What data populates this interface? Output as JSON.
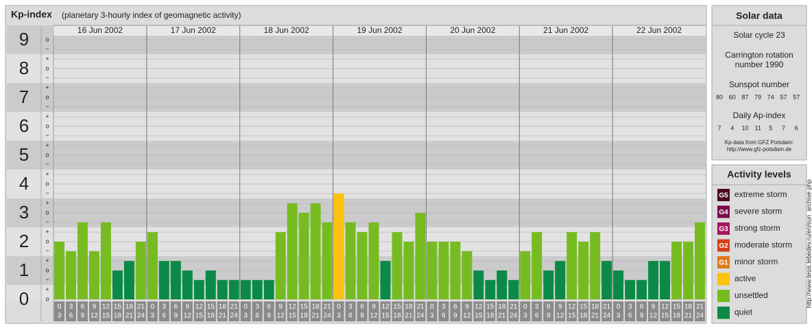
{
  "chart_data": {
    "type": "bar",
    "title": "Kp-index",
    "subtitle": "(planetary 3-hourly index of geomagnetic activity)",
    "categories": [
      "16 Jun 2002",
      "17 Jun 2002",
      "18 Jun 2002",
      "19 Jun 2002",
      "20 Jun 2002",
      "21 Jun 2002",
      "22 Jun 2002"
    ],
    "hour_labels": [
      [
        "0",
        "3"
      ],
      [
        "3",
        "6"
      ],
      [
        "6",
        "9"
      ],
      [
        "9",
        "12"
      ],
      [
        "12",
        "15"
      ],
      [
        "15",
        "18"
      ],
      [
        "18",
        "21"
      ],
      [
        "21",
        "24"
      ]
    ],
    "values": [
      [
        2,
        1.67,
        2.67,
        1.67,
        2.67,
        1,
        1.33,
        2
      ],
      [
        2.33,
        1.33,
        1.33,
        1,
        0.67,
        1,
        0.67,
        0.67
      ],
      [
        0.67,
        0.67,
        0.67,
        2.33,
        3.33,
        3,
        3.33,
        2.67
      ],
      [
        3.67,
        2.67,
        2.33,
        2.67,
        1.33,
        2.33,
        2,
        3
      ],
      [
        2,
        2,
        2,
        1.67,
        1,
        0.67,
        1,
        0.67
      ],
      [
        1.67,
        2.33,
        1,
        1.33,
        2.33,
        2,
        2.33,
        1.33
      ],
      [
        1,
        0.67,
        0.67,
        1.33,
        1.33,
        2,
        2,
        2.67
      ]
    ],
    "colors": [
      [
        "#76bc21",
        "#76bc21",
        "#76bc21",
        "#76bc21",
        "#76bc21",
        "#0a8a46",
        "#0a8a46",
        "#76bc21"
      ],
      [
        "#76bc21",
        "#0a8a46",
        "#0a8a46",
        "#0a8a46",
        "#0a8a46",
        "#0a8a46",
        "#0a8a46",
        "#0a8a46"
      ],
      [
        "#0a8a46",
        "#0a8a46",
        "#0a8a46",
        "#76bc21",
        "#76bc21",
        "#76bc21",
        "#76bc21",
        "#76bc21"
      ],
      [
        "#fcc20d",
        "#76bc21",
        "#76bc21",
        "#76bc21",
        "#0a8a46",
        "#76bc21",
        "#76bc21",
        "#76bc21"
      ],
      [
        "#76bc21",
        "#76bc21",
        "#76bc21",
        "#76bc21",
        "#0a8a46",
        "#0a8a46",
        "#0a8a46",
        "#0a8a46"
      ],
      [
        "#76bc21",
        "#76bc21",
        "#0a8a46",
        "#0a8a46",
        "#76bc21",
        "#76bc21",
        "#76bc21",
        "#0a8a46"
      ],
      [
        "#0a8a46",
        "#0a8a46",
        "#0a8a46",
        "#0a8a46",
        "#0a8a46",
        "#76bc21",
        "#76bc21",
        "#76bc21"
      ]
    ],
    "ylim": [
      0,
      9.5
    ],
    "yticks": [
      0,
      1,
      2,
      3,
      4,
      5,
      6,
      7,
      8,
      9
    ],
    "minor_ticks": [
      {
        "value": 0,
        "label": "o"
      },
      {
        "value": 0.33,
        "label": "+"
      },
      {
        "value": 0.67,
        "label": "−"
      },
      {
        "value": 1,
        "label": "o"
      },
      {
        "value": 1.33,
        "label": "+"
      },
      {
        "value": 1.67,
        "label": "−"
      },
      {
        "value": 2,
        "label": "o"
      },
      {
        "value": 2.33,
        "label": "+"
      },
      {
        "value": 2.67,
        "label": "−"
      },
      {
        "value": 3,
        "label": "o"
      },
      {
        "value": 3.33,
        "label": "+"
      },
      {
        "value": 3.67,
        "label": "−"
      },
      {
        "value": 4,
        "label": "o"
      },
      {
        "value": 4.33,
        "label": "+"
      },
      {
        "value": 4.67,
        "label": "−"
      },
      {
        "value": 5,
        "label": "o"
      },
      {
        "value": 5.33,
        "label": "+"
      },
      {
        "value": 5.67,
        "label": "−"
      },
      {
        "value": 6,
        "label": "o"
      },
      {
        "value": 6.33,
        "label": "+"
      },
      {
        "value": 6.67,
        "label": "−"
      },
      {
        "value": 7,
        "label": "o"
      },
      {
        "value": 7.33,
        "label": "+"
      },
      {
        "value": 7.67,
        "label": "−"
      },
      {
        "value": 8,
        "label": "o"
      },
      {
        "value": 8.33,
        "label": "+"
      },
      {
        "value": 8.67,
        "label": "−"
      },
      {
        "value": 9,
        "label": "o"
      }
    ],
    "grid": true
  },
  "solar_data": {
    "title": "Solar data",
    "cycle": "Solar cycle 23",
    "carrington": [
      "Carrington rotation",
      "number 1990"
    ],
    "sunspot_title": "Sunspot number",
    "sunspot_numbers": [
      80,
      60,
      87,
      79,
      74,
      57,
      57
    ],
    "ap_title": "Daily Ap-index",
    "ap_values": [
      7,
      4,
      10,
      11,
      5,
      7,
      6
    ],
    "source": [
      "Kp-data from GFZ Potsdam:",
      "http://www.gfz-potsdam.de"
    ]
  },
  "activity_levels": {
    "title": "Activity levels",
    "items": [
      {
        "code": "G5",
        "label": "extreme storm",
        "color": "#4a0a22"
      },
      {
        "code": "G4",
        "label": "severe storm",
        "color": "#7a0c48"
      },
      {
        "code": "G3",
        "label": "strong storm",
        "color": "#a8145e"
      },
      {
        "code": "G2",
        "label": "moderate storm",
        "color": "#d2401a"
      },
      {
        "code": "G1",
        "label": "minor storm",
        "color": "#e07a1e"
      },
      {
        "label": "active",
        "color": "#fcc20d"
      },
      {
        "label": "unsettled",
        "color": "#76bc21"
      },
      {
        "label": "quiet",
        "color": "#0a8a46"
      }
    ]
  },
  "watermark": "http://www.tesis.lebedev.ru/en/sun_archive.php"
}
